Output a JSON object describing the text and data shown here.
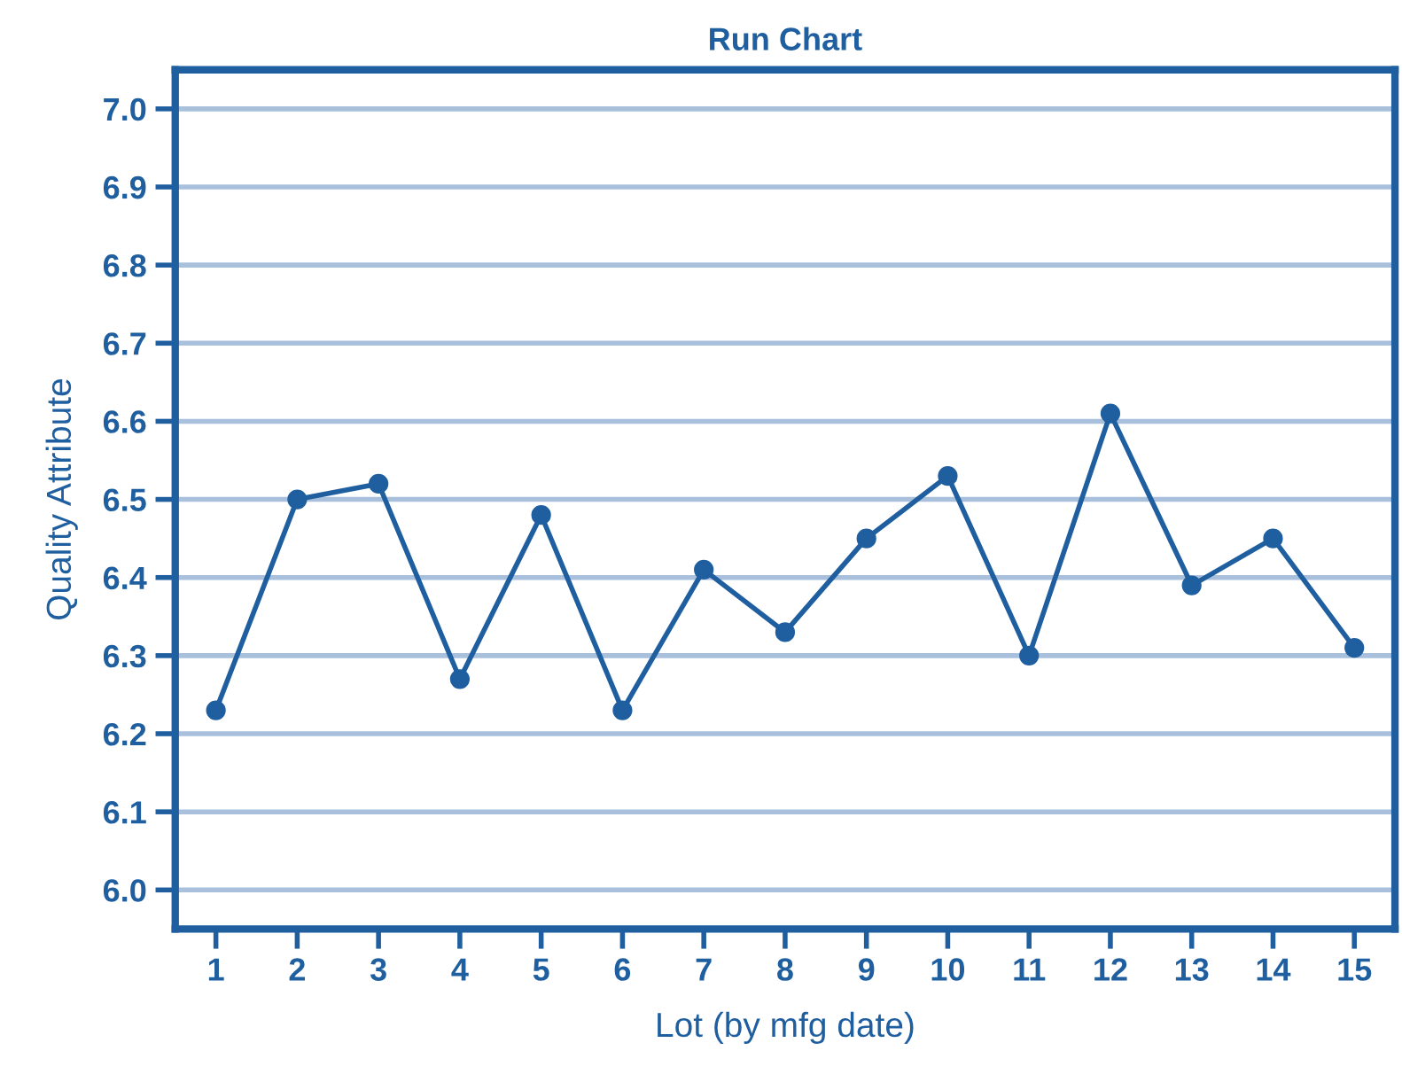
{
  "chart_data": {
    "type": "line",
    "title": "Run Chart",
    "xlabel": "Lot (by mfg date)",
    "ylabel": "Quality Attribute",
    "x": [
      1,
      2,
      3,
      4,
      5,
      6,
      7,
      8,
      9,
      10,
      11,
      12,
      13,
      14,
      15
    ],
    "series": [
      {
        "color": "#1f5fa0",
        "values": [
          6.23,
          6.5,
          6.52,
          6.27,
          6.48,
          6.23,
          6.41,
          6.33,
          6.45,
          6.53,
          6.3,
          6.61,
          6.39,
          6.45,
          6.31
        ]
      }
    ],
    "xlim": [
      0.5,
      15.5
    ],
    "xticks": [
      1,
      2,
      3,
      4,
      5,
      6,
      7,
      8,
      9,
      10,
      11,
      12,
      13,
      14,
      15
    ],
    "ylim": [
      5.95,
      7.05
    ],
    "yticks": [
      {
        "value": 6.0,
        "label": "6.0"
      },
      {
        "value": 6.1,
        "label": "6.1"
      },
      {
        "value": 6.2,
        "label": "6.2"
      },
      {
        "value": 6.3,
        "label": "6.3"
      },
      {
        "value": 6.4,
        "label": "6.4"
      },
      {
        "value": 6.5,
        "label": "6.5"
      },
      {
        "value": 6.6,
        "label": "6.6"
      },
      {
        "value": 6.7,
        "label": "6.7"
      },
      {
        "value": 6.8,
        "label": "6.8"
      },
      {
        "value": 6.9,
        "label": "6.9"
      },
      {
        "value": 7.0,
        "label": "7.0"
      }
    ],
    "grid": "y",
    "marker": "circle",
    "line_style": "solid",
    "legend": false
  }
}
